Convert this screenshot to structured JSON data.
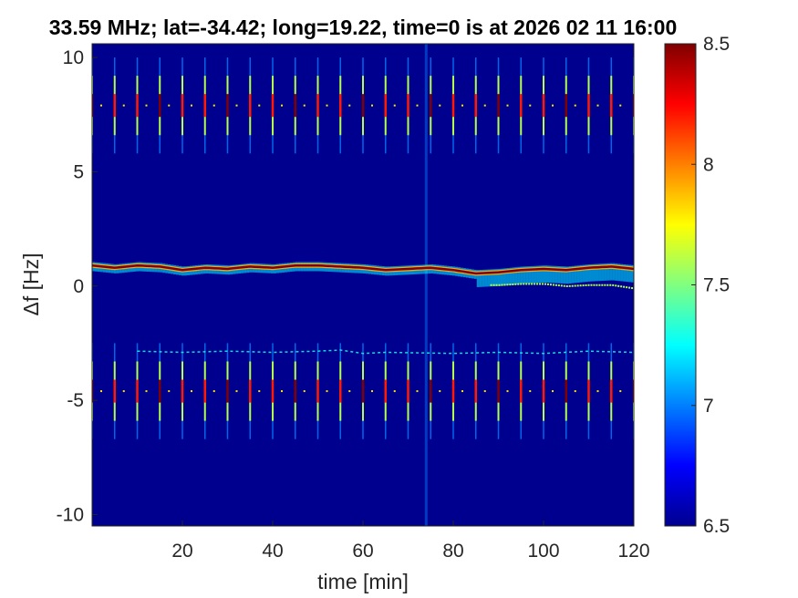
{
  "chart_data": {
    "type": "heatmap",
    "title": "33.59 MHz;  lat=-34.42; long=19.22, time=0 is at 2026 02 11 16:00",
    "xlabel": "time [min]",
    "ylabel": "Δf [Hz]",
    "xlim": [
      0,
      120
    ],
    "ylim": [
      -10.5,
      10.6
    ],
    "xticks": [
      20,
      40,
      60,
      80,
      100,
      120
    ],
    "yticks": [
      -10,
      -5,
      0,
      5,
      10
    ],
    "colorbar": {
      "min": 6.5,
      "max": 8.5,
      "ticks": [
        6.5,
        7,
        7.5,
        8,
        8.5
      ],
      "colormap": "jet"
    },
    "background_value": 6.55,
    "features": {
      "main_trace": {
        "description_values": "frequency offset of the strong carrier vs time",
        "x": [
          0,
          5,
          10,
          15,
          20,
          25,
          30,
          35,
          40,
          45,
          50,
          55,
          60,
          65,
          70,
          75,
          80,
          85,
          90,
          95,
          100,
          105,
          110,
          115,
          120
        ],
        "y": [
          0.9,
          0.8,
          0.9,
          0.85,
          0.7,
          0.8,
          0.75,
          0.85,
          0.8,
          0.9,
          0.9,
          0.85,
          0.8,
          0.7,
          0.75,
          0.8,
          0.7,
          0.55,
          0.6,
          0.7,
          0.75,
          0.7,
          0.8,
          0.85,
          0.75
        ],
        "value": 8.5
      },
      "weak_trace": {
        "x": [
          10,
          20,
          30,
          40,
          50,
          55,
          60,
          65,
          80,
          90,
          100,
          110,
          120
        ],
        "y": [
          -2.85,
          -2.9,
          -2.85,
          -2.9,
          -2.85,
          -2.8,
          -2.95,
          -2.9,
          -2.95,
          -2.9,
          -2.95,
          -2.85,
          -2.9
        ],
        "value": 7.3
      },
      "periodic_bursts": {
        "times": [
          0,
          5,
          10,
          15,
          20,
          25,
          30,
          35,
          40,
          45,
          50,
          55,
          60,
          65,
          70,
          75,
          80,
          85,
          90,
          95,
          100,
          105,
          110,
          115,
          120
        ],
        "upper_center": 7.9,
        "lower_center": -4.6,
        "value": 8.2
      },
      "broadband_spike": {
        "x": 74,
        "value": 7.0
      }
    }
  }
}
